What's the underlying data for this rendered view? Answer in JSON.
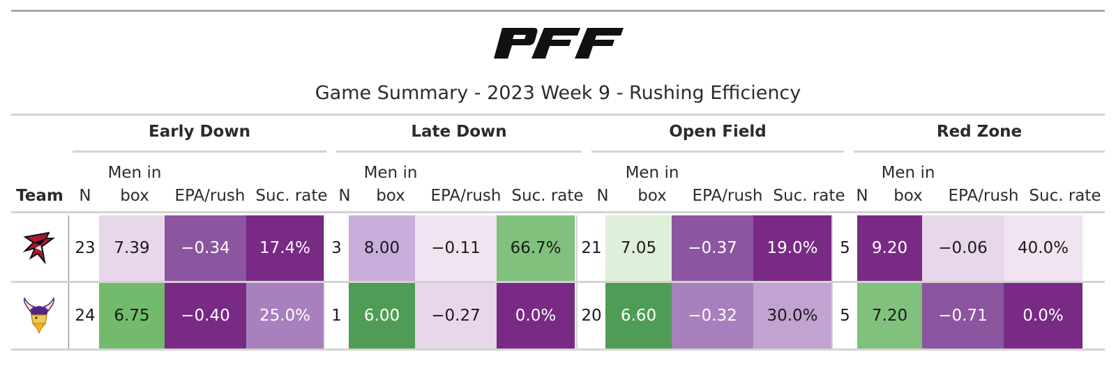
{
  "subtitle": "Game Summary - 2023 Week 9 - Rushing Efficiency",
  "columns": {
    "team": "Team",
    "n": "N",
    "men_in_box_line1": "Men in",
    "men_in_box_line2": "box",
    "epa": "EPA/rush",
    "suc": "Suc. rate"
  },
  "groups": [
    "Early Down",
    "Late Down",
    "Open Field",
    "Red Zone"
  ],
  "rows": [
    {
      "team_icon": "falcons-logo",
      "values": [
        [
          "23",
          "7.39",
          "−0.34",
          "17.4%"
        ],
        [
          "3",
          "8.00",
          "−0.11",
          "66.7%"
        ],
        [
          "21",
          "7.05",
          "−0.37",
          "19.0%"
        ],
        [
          "5",
          "9.20",
          "−0.06",
          "40.0%"
        ]
      ],
      "colors": [
        [
          "#e8d7ea",
          "#8c559f",
          "#782a85"
        ],
        [
          "#c9addb",
          "#efe4f0",
          "#80c17d"
        ],
        [
          "#dff0da",
          "#8c559f",
          "#782a85"
        ],
        [
          "#782a85",
          "#e8d7ea",
          "#efe4f0"
        ]
      ]
    },
    {
      "team_icon": "vikings-logo",
      "values": [
        [
          "24",
          "6.75",
          "−0.40",
          "25.0%"
        ],
        [
          "1",
          "6.00",
          "−0.27",
          "0.0%"
        ],
        [
          "20",
          "6.60",
          "−0.32",
          "30.0%"
        ],
        [
          "5",
          "7.20",
          "−0.71",
          "0.0%"
        ]
      ],
      "colors": [
        [
          "#72ba6c",
          "#782a85",
          "#a880bd"
        ],
        [
          "#4e9c55",
          "#e8d7ea",
          "#782a85"
        ],
        [
          "#4e9c55",
          "#a880bd",
          "#c2a2d1"
        ],
        [
          "#80c17d",
          "#8c559f",
          "#782a85"
        ]
      ]
    }
  ]
}
